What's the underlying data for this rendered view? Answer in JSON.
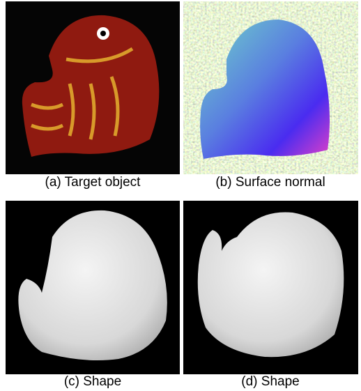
{
  "panels": [
    {
      "caption": "(a) Target object"
    },
    {
      "caption": "(b) Surface normal"
    },
    {
      "caption": "(c) Shape"
    },
    {
      "caption": "(d) Shape"
    }
  ]
}
